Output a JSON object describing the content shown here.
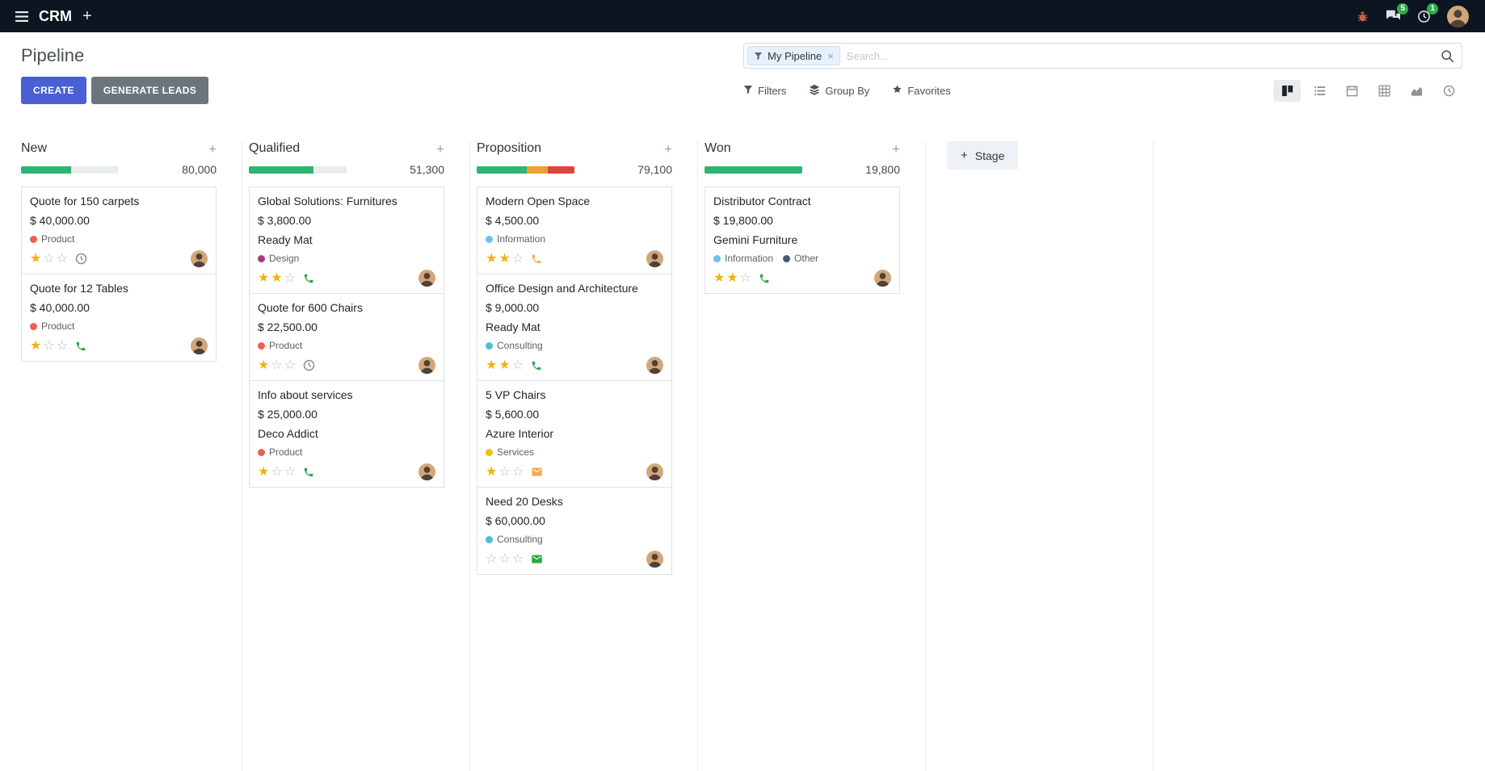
{
  "topbar": {
    "app_name": "CRM",
    "add_label": "+",
    "messages_badge": "5",
    "activities_badge": "1"
  },
  "control_panel": {
    "title": "Pipeline",
    "buttons": {
      "create": "CREATE",
      "generate_leads": "GENERATE LEADS",
      "filters": "Filters",
      "group_by": "Group By",
      "favorites": "Favorites"
    },
    "search": {
      "facet_label": "My Pipeline",
      "facet_remove": "×",
      "placeholder": "Search..."
    }
  },
  "kanban": {
    "add_stage_label": "Stage",
    "add_stage_plus": "+",
    "column_add_label": "+",
    "columns": [
      {
        "name": "New",
        "total": "80,000",
        "progress": [
          {
            "color": "#2bb673",
            "pct": 51
          }
        ],
        "cards": [
          {
            "title": "Quote for 150 carpets",
            "amount": "$ 40,000.00",
            "partner": "",
            "tags": [
              {
                "label": "Product",
                "color": "#f06050"
              }
            ],
            "stars": 1,
            "activity": {
              "type": "clock",
              "color": "#8a8f94"
            }
          },
          {
            "title": "Quote for 12 Tables",
            "amount": "$ 40,000.00",
            "partner": "",
            "tags": [
              {
                "label": "Product",
                "color": "#f06050"
              }
            ],
            "stars": 1,
            "activity": {
              "type": "phone",
              "color": "#28a745"
            }
          }
        ]
      },
      {
        "name": "Qualified",
        "total": "51,300",
        "progress": [
          {
            "color": "#2bb673",
            "pct": 66
          }
        ],
        "cards": [
          {
            "title": "Global Solutions: Furnitures",
            "amount": "$ 3,800.00",
            "partner": "Ready Mat",
            "tags": [
              {
                "label": "Design",
                "color": "#a43c85"
              }
            ],
            "stars": 2,
            "activity": {
              "type": "phone",
              "color": "#28a745"
            }
          },
          {
            "title": "Quote for 600 Chairs",
            "amount": "$ 22,500.00",
            "partner": "",
            "tags": [
              {
                "label": "Product",
                "color": "#f06050"
              }
            ],
            "stars": 1,
            "activity": {
              "type": "clock",
              "color": "#8a8f94"
            }
          },
          {
            "title": "Info about services",
            "amount": "$ 25,000.00",
            "partner": "Deco Addict",
            "tags": [
              {
                "label": "Product",
                "color": "#f06050"
              }
            ],
            "stars": 1,
            "activity": {
              "type": "phone",
              "color": "#28a745"
            }
          }
        ]
      },
      {
        "name": "Proposition",
        "total": "79,100",
        "progress": [
          {
            "color": "#2bb673",
            "pct": 51
          },
          {
            "color": "#f0a030",
            "pct": 22
          },
          {
            "color": "#e0453a",
            "pct": 27
          }
        ],
        "cards": [
          {
            "title": "Modern Open Space",
            "amount": "$ 4,500.00",
            "partner": "",
            "tags": [
              {
                "label": "Information",
                "color": "#6cc1ed"
              }
            ],
            "stars": 2,
            "activity": {
              "type": "phone",
              "color": "#f0ad4e"
            }
          },
          {
            "title": "Office Design and Architecture",
            "amount": "$ 9,000.00",
            "partner": "Ready Mat",
            "tags": [
              {
                "label": "Consulting",
                "color": "#52bcd4"
              }
            ],
            "stars": 2,
            "activity": {
              "type": "phone",
              "color": "#28a745"
            }
          },
          {
            "title": "5 VP Chairs",
            "amount": "$ 5,600.00",
            "partner": "Azure Interior",
            "tags": [
              {
                "label": "Services",
                "color": "#efc100"
              }
            ],
            "stars": 1,
            "activity": {
              "type": "envelope",
              "color": "#f0ad4e"
            }
          },
          {
            "title": "Need 20 Desks",
            "amount": "$ 60,000.00",
            "partner": "",
            "tags": [
              {
                "label": "Consulting",
                "color": "#52bcd4"
              }
            ],
            "stars": 0,
            "activity": {
              "type": "envelope",
              "color": "#28a745"
            }
          }
        ]
      },
      {
        "name": "Won",
        "total": "19,800",
        "progress": [
          {
            "color": "#2bb673",
            "pct": 100
          }
        ],
        "cards": [
          {
            "title": "Distributor Contract",
            "amount": "$ 19,800.00",
            "partner": "Gemini Furniture",
            "tags": [
              {
                "label": "Information",
                "color": "#6cc1ed"
              },
              {
                "label": "Other",
                "color": "#475577"
              }
            ],
            "stars": 2,
            "activity": {
              "type": "phone",
              "color": "#28a745"
            }
          }
        ]
      }
    ]
  },
  "colors": {
    "topbar_bg": "#0d1520",
    "primary_button": "#4a5fd4",
    "secondary_button": "#6c757d",
    "progress_green": "#2bb673",
    "progress_orange": "#f0a030",
    "progress_red": "#e0453a",
    "star_gold": "#efb30f",
    "badge_green": "#2fab4f"
  }
}
